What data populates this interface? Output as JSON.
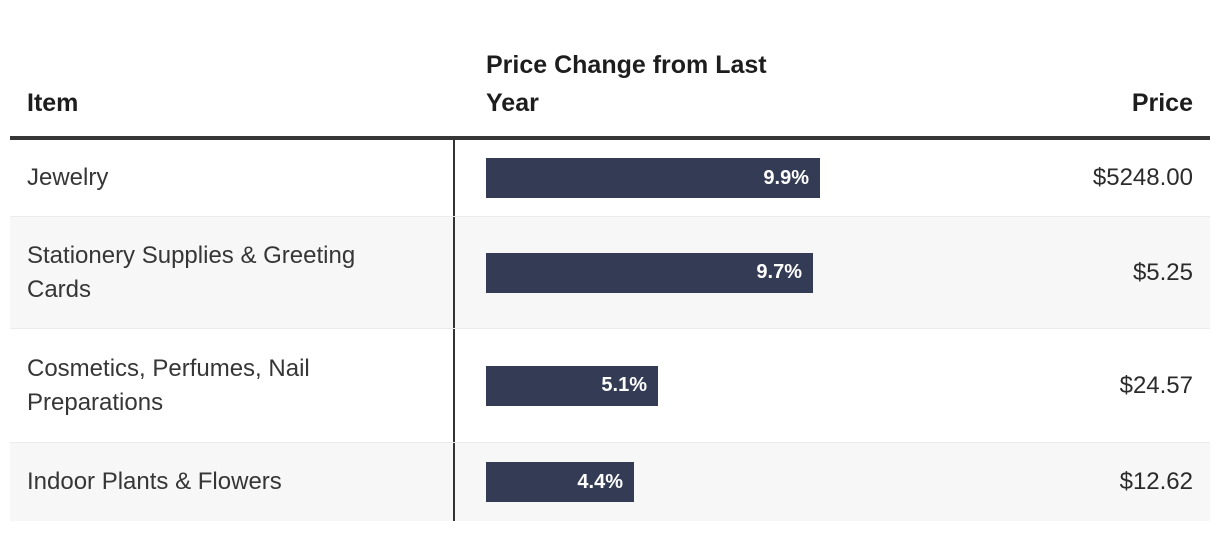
{
  "table": {
    "columns": {
      "item_label": "Item",
      "change_label": "Price Change from Last Year",
      "price_label": "Price"
    },
    "rows": [
      {
        "item": "Jewelry",
        "change_label": "9.9%",
        "change_value": 9.9,
        "price": "$5248.00"
      },
      {
        "item": "Stationery Supplies & Greeting Cards",
        "change_label": "9.7%",
        "change_value": 9.7,
        "price": "$5.25"
      },
      {
        "item": "Cosmetics, Perfumes, Nail Preparations",
        "change_label": "5.1%",
        "change_value": 5.1,
        "price": "$24.57"
      },
      {
        "item": "Indoor Plants & Flowers",
        "change_label": "4.4%",
        "change_value": 4.4,
        "price": "$12.62"
      }
    ]
  },
  "chart_data": {
    "type": "table",
    "columns": [
      "Item",
      "Price Change from Last Year",
      "Price"
    ],
    "embedded_chart": {
      "type": "bar",
      "orientation": "horizontal",
      "categories": [
        "Jewelry",
        "Stationery Supplies & Greeting Cards",
        "Cosmetics, Perfumes, Nail Preparations",
        "Indoor Plants & Flowers"
      ],
      "values": [
        9.9,
        9.7,
        5.1,
        4.4
      ],
      "unit": "%",
      "data_labels": [
        "9.9%",
        "9.7%",
        "5.1%",
        "4.4%"
      ],
      "xlim": [
        0,
        10
      ],
      "grid": false,
      "legend": false
    },
    "prices": [
      "$5248.00",
      "$5.25",
      "$24.57",
      "$12.62"
    ]
  },
  "colors": {
    "bar_color": "#333b55",
    "header_border": "#363636",
    "divider": "#333333",
    "row_alt": "#f7f7f7",
    "separator": "#ebebeb",
    "header_text": "#1d1d1d",
    "body_text": "#363636",
    "price_text": "#2b2b2b"
  }
}
